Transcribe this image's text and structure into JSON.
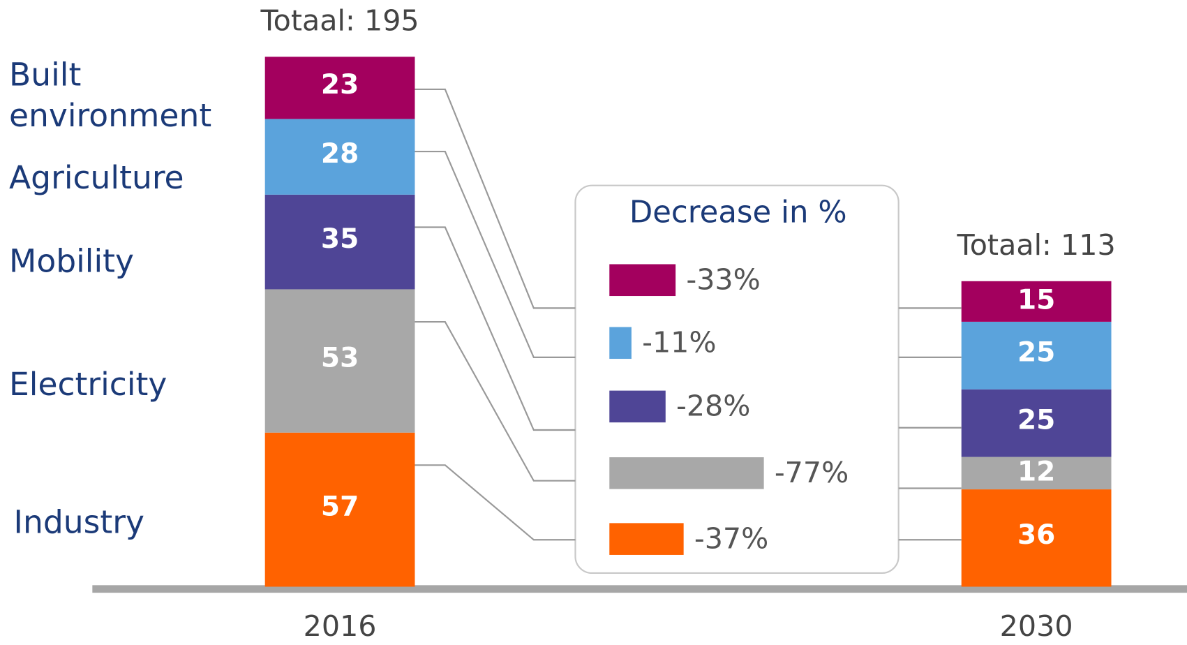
{
  "chart_data": {
    "type": "bar",
    "stacked": true,
    "categories": [
      "2016",
      "2030"
    ],
    "total_labels": [
      "Totaal: 195",
      "Totaal: 113"
    ],
    "legend_title": "Decrease in %",
    "series": [
      {
        "name": "Industry",
        "color": "#ff6200",
        "values": [
          57,
          36
        ],
        "decrease": -37,
        "decrease_label": "-37%"
      },
      {
        "name": "Electricity",
        "color": "#a8a8a8",
        "values": [
          53,
          12
        ],
        "decrease": -77,
        "decrease_label": "-77%"
      },
      {
        "name": "Mobility",
        "color": "#4f4596",
        "values": [
          35,
          25
        ],
        "decrease": -28,
        "decrease_label": "-28%"
      },
      {
        "name": "Agriculture",
        "color": "#5ba3dc",
        "values": [
          28,
          25
        ],
        "decrease": -11,
        "decrease_label": "-11%"
      },
      {
        "name": "Built environment",
        "color": "#a3005e",
        "values": [
          23,
          15
        ],
        "decrease": -33,
        "decrease_label": "-33%"
      }
    ]
  }
}
